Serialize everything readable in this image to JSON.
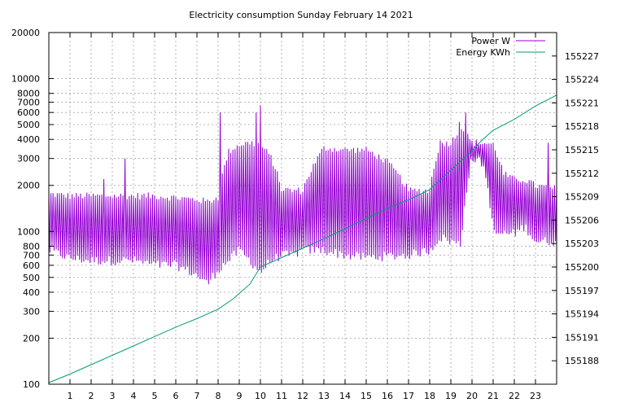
{
  "chart_data": {
    "type": "line",
    "title": "Electricity consumption Sunday February 14 2021",
    "xlabel": "",
    "ylabel": "",
    "y2label": "",
    "x_ticks": [
      "1",
      "2",
      "3",
      "4",
      "5",
      "6",
      "7",
      "8",
      "9",
      "10",
      "11",
      "12",
      "13",
      "14",
      "15",
      "16",
      "17",
      "18",
      "19",
      "20",
      "21",
      "22",
      "23"
    ],
    "xlim": [
      0,
      24
    ],
    "ylim": [
      100,
      20000
    ],
    "y_scale": "log",
    "y_ticks": [
      "100",
      "200",
      "300",
      "400",
      "500",
      "600",
      "700",
      "800",
      "1000",
      "2000",
      "3000",
      "4000",
      "5000",
      "6000",
      "7000",
      "8000",
      "10000",
      "20000"
    ],
    "y2lim": [
      155185,
      155230
    ],
    "y2_ticks": [
      "155188",
      "155191",
      "155194",
      "155197",
      "155200",
      "155203",
      "155206",
      "155209",
      "155212",
      "155215",
      "155218",
      "155221",
      "155224",
      "155227"
    ],
    "grid": true,
    "legend_position": "top-right",
    "series": [
      {
        "name": "Power W",
        "color": "#9400d3",
        "axis": "left",
        "envelope_hours": [
          0,
          1,
          2,
          3,
          4,
          5,
          6,
          7,
          7.5,
          8,
          8.5,
          9,
          9.5,
          10,
          10.5,
          11,
          11.5,
          12,
          13,
          14,
          15,
          16,
          17,
          18,
          18.5,
          19,
          19.5,
          20,
          20.5,
          21,
          21.5,
          22,
          22.5,
          23,
          24
        ],
        "envelope_low": [
          700,
          620,
          600,
          600,
          600,
          560,
          560,
          480,
          420,
          520,
          600,
          700,
          600,
          500,
          600,
          650,
          650,
          700,
          700,
          650,
          630,
          640,
          650,
          700,
          850,
          800,
          760,
          2800,
          2600,
          900,
          900,
          900,
          1000,
          800,
          800
        ],
        "envelope_high": [
          1850,
          1800,
          1800,
          1800,
          1800,
          1800,
          1750,
          1700,
          1650,
          1750,
          3500,
          3900,
          4000,
          3900,
          3200,
          2000,
          1950,
          1950,
          3700,
          3600,
          3600,
          3000,
          1950,
          1950,
          4000,
          4000,
          5000,
          4000,
          4000,
          3900,
          2500,
          2300,
          2300,
          2100,
          2000
        ],
        "spikes": [
          [
            2.6,
            2200
          ],
          [
            3.6,
            3000
          ],
          [
            8.1,
            6000
          ],
          [
            9.8,
            6000
          ],
          [
            10.0,
            6700
          ],
          [
            19.4,
            5200
          ],
          [
            19.7,
            6000
          ],
          [
            23.6,
            3800
          ]
        ]
      },
      {
        "name": "Energy KWh",
        "color": "#009e73",
        "axis": "right",
        "x": [
          0,
          1,
          2,
          3,
          4,
          5,
          6,
          7,
          8,
          8.7,
          9.5,
          10,
          11,
          12,
          13,
          14,
          15,
          16,
          17,
          18,
          19,
          20,
          20.5,
          21,
          22,
          23,
          24
        ],
        "y": [
          155185.2,
          155186.3,
          155187.5,
          155188.7,
          155189.9,
          155191.1,
          155192.3,
          155193.4,
          155194.6,
          155195.9,
          155197.8,
          155200.0,
          155201.2,
          155202.4,
          155203.6,
          155204.9,
          155206.2,
          155207.5,
          155208.6,
          155209.9,
          155212.4,
          155214.9,
          155216.3,
          155217.5,
          155218.9,
          155220.6,
          155222.0
        ]
      }
    ]
  }
}
